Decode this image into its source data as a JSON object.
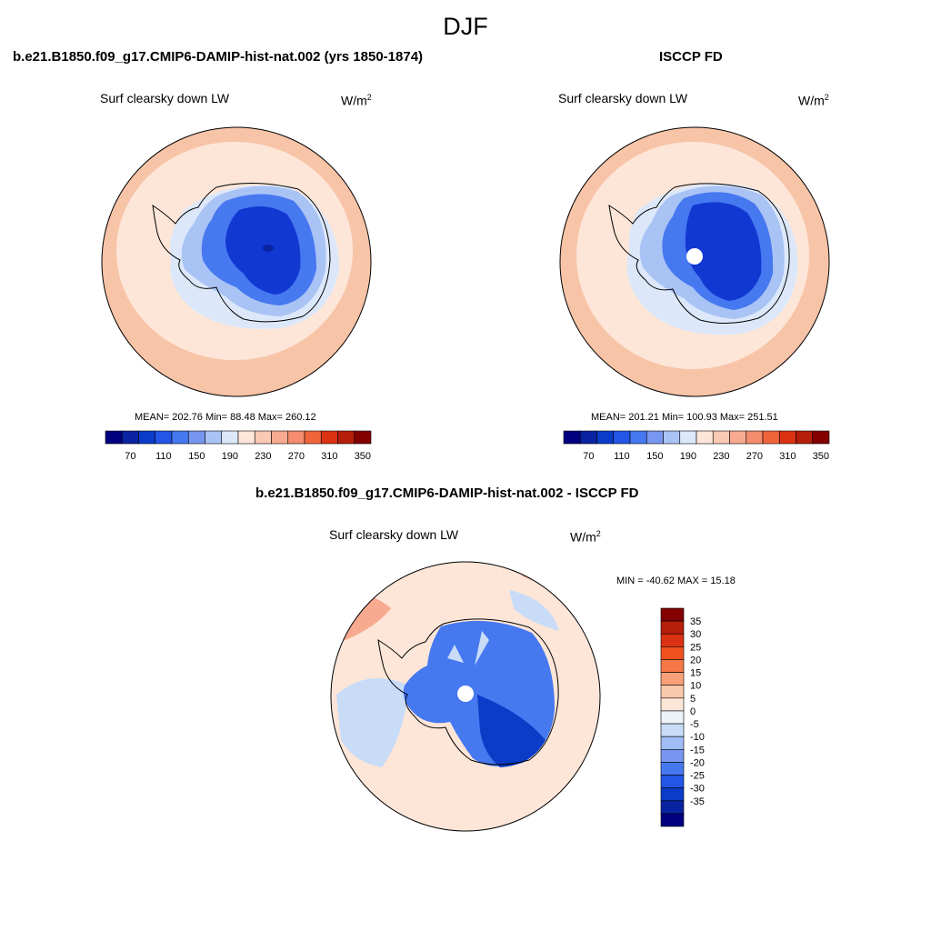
{
  "figure": {
    "season": "DJF"
  },
  "panels": {
    "model": {
      "title": "b.e21.B1850.f09_g17.CMIP6-DAMIP-hist-nat.002 (yrs 1850-1874)",
      "variable": "Surf clearsky down LW",
      "unit_base": "W/m",
      "unit_exp": "2",
      "stats": "MEAN= 202.76  Min=  88.48  Max= 260.12"
    },
    "obs": {
      "title": "ISCCP FD",
      "variable": "Surf clearsky down LW",
      "unit_base": "W/m",
      "unit_exp": "2",
      "stats": "MEAN= 201.21  Min= 100.93  Max= 251.51"
    },
    "diff": {
      "title": "b.e21.B1850.f09_g17.CMIP6-DAMIP-hist-nat.002 - ISCCP FD",
      "variable": "Surf clearsky down LW",
      "unit_base": "W/m",
      "unit_exp": "2",
      "stats": "MIN = -40.62 MAX =  15.18"
    }
  },
  "colorbars": {
    "absolute": {
      "colors": [
        "#000080",
        "#0a23a0",
        "#0a3cc8",
        "#2356e6",
        "#4678f0",
        "#7896f0",
        "#aac3f5",
        "#dce8fa",
        "#fde6d8",
        "#fac8b4",
        "#f8aa90",
        "#f58c6e",
        "#f0643c",
        "#dc3214",
        "#b41e0a",
        "#820000"
      ],
      "labels": [
        "70",
        "110",
        "150",
        "190",
        "230",
        "270",
        "310",
        "350"
      ]
    },
    "difference": {
      "colors": [
        "#820000",
        "#b41e0a",
        "#dc3214",
        "#f0501e",
        "#f57846",
        "#f8a078",
        "#fac8aa",
        "#fde6d8",
        "#eef3fa",
        "#c8dcf8",
        "#a0bef5",
        "#7896f0",
        "#4678f0",
        "#2356e6",
        "#0a3cc8",
        "#0a23a0",
        "#000080"
      ],
      "labels": [
        "35",
        "30",
        "25",
        "20",
        "15",
        "10",
        "5",
        "0",
        "-5",
        "-10",
        "-15",
        "-20",
        "-25",
        "-30",
        "-35"
      ]
    }
  },
  "colors": {
    "ring_outer": "#f8c4a8",
    "ring_mid": "#fde6d8",
    "ocean_cold": "#dce8fa",
    "ice_light": "#aac3f5",
    "ice_mid": "#4678f0",
    "ice_dark": "#1238d2",
    "ice_core": "#0a23a0",
    "diff_warm": "#fde6d8",
    "diff_hot": "#f8aa90",
    "diff_cool": "#c8dcf8",
    "diff_blue": "#4678f0",
    "diff_deep": "#0a3cc8"
  }
}
